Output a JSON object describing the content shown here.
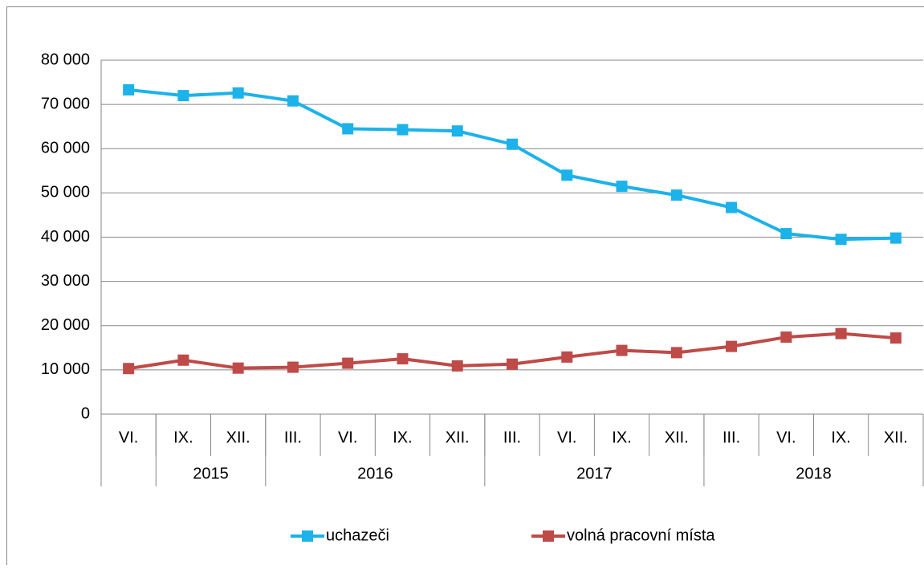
{
  "chart_data": {
    "type": "line",
    "categories": [
      "VI.",
      "IX.",
      "XII.",
      "III.",
      "VI.",
      "IX.",
      "XII.",
      "III.",
      "VI.",
      "IX.",
      "XII.",
      "III.",
      "VI.",
      "IX.",
      "XII."
    ],
    "groups": [
      {
        "label": null,
        "count": 1
      },
      {
        "label": "2015",
        "count": 2
      },
      {
        "label": "2016",
        "count": 4
      },
      {
        "label": "2017",
        "count": 4
      },
      {
        "label": "2018",
        "count": 4
      }
    ],
    "series": [
      {
        "name": "uchazeči",
        "color": "#1cb2ea",
        "values": [
          73300,
          72000,
          72600,
          70800,
          64500,
          64300,
          64000,
          61000,
          54000,
          51500,
          49500,
          46700,
          40800,
          39500,
          39800
        ]
      },
      {
        "name": "volná pracovní místa",
        "color": "#be4b48",
        "values": [
          10300,
          12200,
          10400,
          10600,
          11500,
          12500,
          10900,
          11300,
          12900,
          14400,
          13900,
          15300,
          17400,
          18200,
          17200
        ]
      }
    ],
    "ylim": [
      0,
      80000
    ],
    "yticks": [
      0,
      {
        "value": 10000,
        "label": "10 000"
      },
      {
        "value": 20000,
        "label": "20 000"
      },
      {
        "value": 30000,
        "label": "30 000"
      },
      {
        "value": 40000,
        "label": "40 000"
      },
      {
        "value": 50000,
        "label": "50 000"
      },
      {
        "value": 60000,
        "label": "60 000"
      },
      {
        "value": 70000,
        "label": "70 000"
      },
      {
        "value": 80000,
        "label": "80 000"
      }
    ],
    "grid": true,
    "legend": "bottom"
  }
}
